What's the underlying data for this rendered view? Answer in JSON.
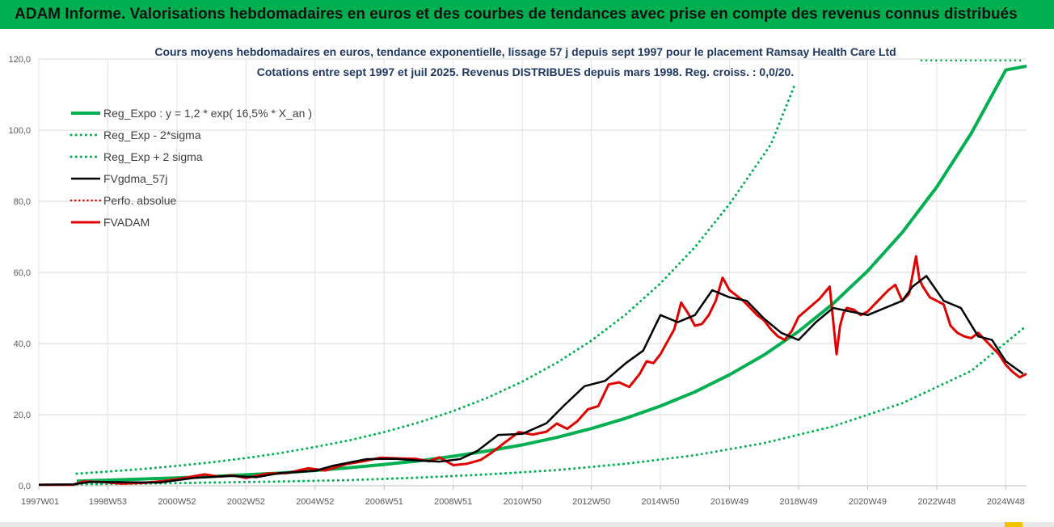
{
  "header": {
    "title": "ADAM Informe. Valorisations hebdomadaires en euros et des courbes de tendances avec prise en compte des revenus connus distribués"
  },
  "chart_data": {
    "type": "line",
    "title_line1": "Cours moyens hebdomadaires en euros, tendance exponentielle, lissage 57 j depuis sept 1997 pour le placement Ramsay Health Care Ltd",
    "title_line2": "Cotations entre sept 1997 et juil 2025. Revenus DISTRIBUES depuis mars 1998. Reg. croiss. : 0,0/20.",
    "y_ticks": [
      "0,0",
      "20,0",
      "40,0",
      "60,0",
      "80,0",
      "100,0",
      "120,0"
    ],
    "ylim": [
      0,
      120
    ],
    "xlim": [
      1997.0,
      2025.6
    ],
    "x_ticks": [
      "1997W01",
      "1998W53",
      "2000W52",
      "2002W52",
      "2004W52",
      "2006W51",
      "2008W51",
      "2010W50",
      "2012W50",
      "2014W50",
      "2016W49",
      "2018W49",
      "2020W49",
      "2022W48",
      "2024W48"
    ],
    "x_tick_years": [
      1997.0,
      1999.0,
      2001.0,
      2003.0,
      2005.0,
      2007.0,
      2009.0,
      2011.0,
      2013.0,
      2015.0,
      2017.0,
      2019.0,
      2021.0,
      2023.0,
      2025.0
    ],
    "grid": true,
    "legend_position": "top-left",
    "legend": [
      {
        "label": "Reg_Expo : y = 1,2 * exp( 16,5% *  X_an )",
        "color": "#00b050",
        "style": "solid-thick"
      },
      {
        "label": "Reg_Exp - 2*sigma",
        "color": "#00b050",
        "style": "dotted"
      },
      {
        "label": "Reg_Exp + 2 sigma",
        "color": "#00b050",
        "style": "dotted"
      },
      {
        "label": "FVgdma_57j",
        "color": "#000000",
        "style": "solid"
      },
      {
        "label": "Perfo. absolue",
        "color": "#e00000",
        "style": "dotted"
      },
      {
        "label": "FVADAM",
        "color": "#e00000",
        "style": "solid-thick"
      }
    ],
    "series": [
      {
        "name": "Reg_Expo : y = 1,2 * exp( 16,5% *  X_an )",
        "x": [
          1998.1,
          1999.0,
          2000.0,
          2001.0,
          2002.0,
          2003.0,
          2004.0,
          2005.0,
          2006.0,
          2007.0,
          2008.0,
          2009.0,
          2010.0,
          2011.0,
          2012.0,
          2013.0,
          2014.0,
          2015.0,
          2016.0,
          2017.0,
          2018.0,
          2019.0,
          2020.0,
          2021.0,
          2022.0,
          2023.0,
          2024.0,
          2025.0,
          2025.6
        ],
        "values": [
          1.3,
          1.6,
          1.9,
          2.2,
          2.6,
          3.1,
          3.6,
          4.3,
          5.1,
          6.0,
          7.0,
          8.3,
          9.8,
          11.5,
          13.6,
          16.1,
          19.0,
          22.4,
          26.4,
          31.2,
          36.8,
          43.4,
          51.2,
          60.4,
          71.2,
          84.0,
          99.1,
          116.9,
          118.0
        ]
      },
      {
        "name": "Reg_Exp - 2*sigma",
        "x": [
          1998.1,
          2000.0,
          2002.0,
          2004.0,
          2006.0,
          2008.0,
          2010.0,
          2012.0,
          2014.0,
          2016.0,
          2018.0,
          2020.0,
          2022.0,
          2024.0,
          2025.6
        ],
        "values": [
          0.4,
          0.6,
          0.9,
          1.2,
          1.6,
          2.3,
          3.2,
          4.4,
          6.2,
          8.6,
          12.0,
          16.7,
          23.2,
          32.3,
          45.0
        ]
      },
      {
        "name": "Reg_Exp + 2 sigma",
        "x": [
          1998.1,
          1999.0,
          2000.0,
          2001.0,
          2002.0,
          2003.0,
          2004.0,
          2005.0,
          2006.0,
          2007.0,
          2008.0,
          2009.0,
          2010.0,
          2011.0,
          2012.0,
          2013.0,
          2014.0,
          2015.0,
          2016.0,
          2017.0,
          2018.2,
          2018.9
        ],
        "values": [
          3.4,
          4.0,
          4.7,
          5.6,
          6.6,
          7.8,
          9.2,
          10.9,
          12.8,
          15.1,
          17.8,
          21.0,
          24.8,
          29.3,
          34.6,
          40.8,
          48.2,
          56.9,
          67.1,
          79.2,
          96.0,
          113.0
        ]
      },
      {
        "name": "FVgdma_57j",
        "x": [
          1997.0,
          1998.0,
          1998.5,
          1999.5,
          2000.5,
          2001.5,
          2002.5,
          2003.3,
          2004.0,
          2005.0,
          2005.5,
          2006.5,
          2007.3,
          2008.0,
          2008.6,
          2009.2,
          2009.7,
          2010.3,
          2011.0,
          2011.7,
          2012.2,
          2012.8,
          2013.4,
          2014.0,
          2014.5,
          2015.0,
          2015.5,
          2016.0,
          2016.5,
          2017.0,
          2017.5,
          2018.0,
          2018.5,
          2019.0,
          2019.5,
          2020.0,
          2020.5,
          2021.0,
          2021.5,
          2022.0,
          2022.3,
          2022.7,
          2023.2,
          2023.7,
          2024.2,
          2024.6,
          2025.0,
          2025.5
        ],
        "values": [
          0.3,
          0.4,
          1.1,
          1.0,
          0.9,
          2.2,
          2.8,
          2.4,
          3.6,
          4.2,
          5.6,
          7.5,
          7.6,
          7.1,
          6.8,
          7.5,
          9.8,
          14.3,
          14.6,
          17.6,
          22.5,
          28.0,
          29.5,
          34.5,
          38.0,
          48.0,
          46.0,
          48.0,
          55.0,
          53.0,
          52.0,
          47.0,
          43.0,
          41.0,
          46.0,
          50.0,
          49.0,
          48.0,
          50.0,
          52.0,
          56.0,
          59.0,
          52.0,
          50.0,
          42.0,
          41.0,
          35.0,
          31.5
        ]
      },
      {
        "name": "FVADAM",
        "x": [
          1997.0,
          1998.0,
          1998.3,
          1998.8,
          1999.4,
          2000.0,
          2000.6,
          2001.2,
          2001.8,
          2002.2,
          2002.6,
          2003.0,
          2003.6,
          2004.2,
          2004.8,
          2005.3,
          2005.9,
          2006.4,
          2006.9,
          2007.4,
          2007.9,
          2008.3,
          2008.6,
          2009.0,
          2009.4,
          2009.8,
          2010.1,
          2010.5,
          2010.9,
          2011.3,
          2011.7,
          2012.0,
          2012.3,
          2012.6,
          2012.9,
          2013.2,
          2013.5,
          2013.8,
          2014.1,
          2014.4,
          2014.6,
          2014.8,
          2015.0,
          2015.2,
          2015.4,
          2015.6,
          2015.8,
          2016.0,
          2016.2,
          2016.4,
          2016.6,
          2016.8,
          2017.0,
          2017.2,
          2017.4,
          2017.6,
          2017.8,
          2018.0,
          2018.2,
          2018.4,
          2018.6,
          2018.8,
          2019.0,
          2019.3,
          2019.6,
          2019.9,
          2020.1,
          2020.2,
          2020.3,
          2020.4,
          2020.6,
          2020.8,
          2021.0,
          2021.2,
          2021.4,
          2021.6,
          2021.8,
          2022.0,
          2022.2,
          2022.4,
          2022.5,
          2022.6,
          2022.8,
          2023.0,
          2023.2,
          2023.4,
          2023.6,
          2023.8,
          2024.0,
          2024.2,
          2024.4,
          2024.6,
          2024.8,
          2025.0,
          2025.2,
          2025.4,
          2025.6
        ],
        "values": [
          0.3,
          0.3,
          1.2,
          1.1,
          0.6,
          0.8,
          1.3,
          2.2,
          3.2,
          2.6,
          2.9,
          2.2,
          3.4,
          3.6,
          4.9,
          4.3,
          6.1,
          6.9,
          7.9,
          7.7,
          7.6,
          6.9,
          8.0,
          5.8,
          6.2,
          7.3,
          9.2,
          12.2,
          15.1,
          14.4,
          15.2,
          17.5,
          16.0,
          18.2,
          21.5,
          22.4,
          28.5,
          29.1,
          27.8,
          31.5,
          35.0,
          34.5,
          37.0,
          40.5,
          44.0,
          51.5,
          48.5,
          45.0,
          45.5,
          48.0,
          52.0,
          58.5,
          55.0,
          53.5,
          52.0,
          50.0,
          48.0,
          46.5,
          44.0,
          42.0,
          41.0,
          43.5,
          47.5,
          50.0,
          52.5,
          56.0,
          37.0,
          45.0,
          48.5,
          50.0,
          49.5,
          48.0,
          49.0,
          51.0,
          53.0,
          55.0,
          56.5,
          52.0,
          54.0,
          64.5,
          58.0,
          56.0,
          53.0,
          52.0,
          51.0,
          45.0,
          43.0,
          42.0,
          41.5,
          43.0,
          41.0,
          39.0,
          37.0,
          34.0,
          32.0,
          30.5,
          31.5
        ]
      }
    ]
  }
}
